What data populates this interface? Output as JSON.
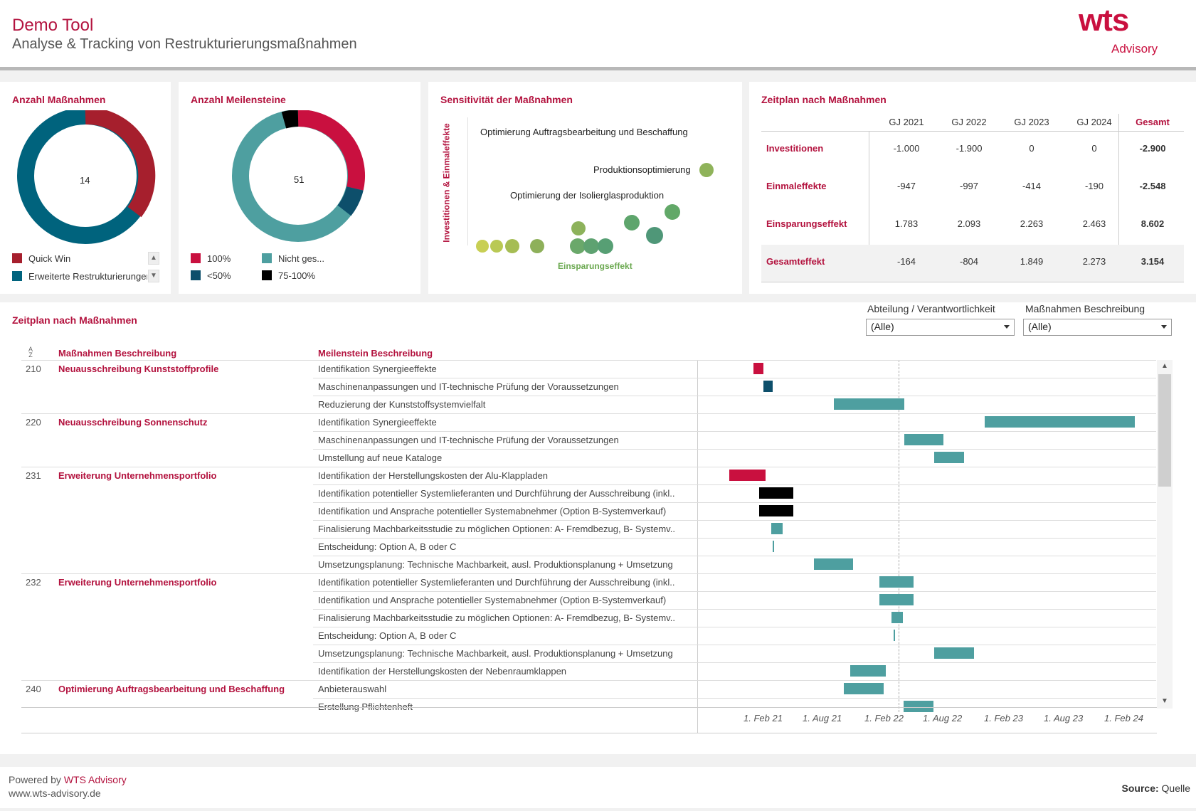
{
  "header": {
    "title": "Demo Tool",
    "subtitle": "Analyse & Tracking von Restrukturierungsmaßnahmen",
    "logo_main": "wts",
    "logo_sub": "Advisory"
  },
  "panel_measures": {
    "title": "Anzahl Maßnahmen",
    "total": "14",
    "legend": [
      {
        "label": "Quick Win",
        "color": "#a61f2d"
      },
      {
        "label": "Erweiterte Restrukturierungen",
        "color": "#00637d"
      }
    ]
  },
  "panel_milestones": {
    "title": "Anzahl Meilensteine",
    "total": "51",
    "legend": [
      {
        "label": "100%",
        "color": "#c9103f"
      },
      {
        "label": "Nicht ges...",
        "color": "#4e9fa0"
      },
      {
        "label": "<50%",
        "color": "#0d4f6b"
      },
      {
        "label": "75-100%",
        "color": "#000000"
      }
    ]
  },
  "panel_sensitivity": {
    "title": "Sensitivität der Maßnahmen",
    "y_label": "Investitionen & Einmaleffekte",
    "x_label": "Einsparungseffekt",
    "labels": [
      "Optimierung Auftragsbearbeitung und Beschaffung",
      "Produktionsoptimierung",
      "Optimierung der Isolierglasproduktion"
    ]
  },
  "panel_schedule": {
    "title": "Zeitplan nach Maßnahmen",
    "columns": [
      "GJ 2021",
      "GJ 2022",
      "GJ 2023",
      "GJ 2024",
      "Gesamt"
    ],
    "rows": [
      {
        "label": "Investitionen",
        "values": [
          "-1.000",
          "-1.900",
          "0",
          "0",
          "-2.900"
        ]
      },
      {
        "label": "Einmaleffekte",
        "values": [
          "-947",
          "-997",
          "-414",
          "-190",
          "-2.548"
        ]
      },
      {
        "label": "Einsparungseffekt",
        "values": [
          "1.783",
          "2.093",
          "2.263",
          "2.463",
          "8.602"
        ]
      },
      {
        "label": "Gesamteffekt",
        "values": [
          "-164",
          "-804",
          "1.849",
          "2.273",
          "3.154"
        ]
      }
    ]
  },
  "gantt": {
    "title": "Zeitplan nach Maßnahmen",
    "filter1_label": "Abteilung / Verantwortlichkeit",
    "filter1_value": "(Alle)",
    "filter2_label": "Maßnahmen Beschreibung",
    "filter2_value": "(Alle)",
    "col_measure": "Maßnahmen Beschreibung",
    "col_milestone": "Meilenstein Beschreibung",
    "axis_labels": [
      "1. Feb 21",
      "1. Aug 21",
      "1. Feb 22",
      "1. Aug 22",
      "1. Feb 23",
      "1. Aug 23",
      "1. Feb 24"
    ],
    "rows": [
      {
        "id": "210",
        "measure": "Neuausschreibung Kunststoffprofile",
        "milestone": "Identifikation Synergieeffekte"
      },
      {
        "id": "",
        "measure": "",
        "milestone": "Maschinenanpassungen und IT-technische Prüfung der Voraussetzungen"
      },
      {
        "id": "",
        "measure": "",
        "milestone": "Reduzierung der Kunststoffsystemvielfalt"
      },
      {
        "id": "220",
        "measure": "Neuausschreibung Sonnenschutz",
        "milestone": "Identifikation Synergieeffekte"
      },
      {
        "id": "",
        "measure": "",
        "milestone": "Maschinenanpassungen und IT-technische Prüfung der Voraussetzungen"
      },
      {
        "id": "",
        "measure": "",
        "milestone": "Umstellung auf neue Kataloge"
      },
      {
        "id": "231",
        "measure": "Erweiterung Unternehmensportfolio",
        "milestone": "Identifikation der Herstellungskosten der Alu-Klappladen"
      },
      {
        "id": "",
        "measure": "",
        "milestone": "Identifikation potentieller Systemlieferanten und Durchführung der Ausschreibung (inkl.."
      },
      {
        "id": "",
        "measure": "",
        "milestone": "Identifikation und Ansprache potentieller Systemabnehmer (Option B-Systemverkauf)"
      },
      {
        "id": "",
        "measure": "",
        "milestone": "Finalisierung Machbarkeitsstudie zu möglichen Optionen: A- Fremdbezug, B- Systemv.."
      },
      {
        "id": "",
        "measure": "",
        "milestone": "Entscheidung: Option A, B oder C"
      },
      {
        "id": "",
        "measure": "",
        "milestone": "Umsetzungsplanung: Technische Machbarkeit, ausl. Produktionsplanung + Umsetzung"
      },
      {
        "id": "232",
        "measure": "Erweiterung Unternehmensportfolio",
        "milestone": "Identifikation potentieller Systemlieferanten und Durchführung der Ausschreibung (inkl.."
      },
      {
        "id": "",
        "measure": "",
        "milestone": "Identifikation und Ansprache potentieller Systemabnehmer (Option B-Systemverkauf)"
      },
      {
        "id": "",
        "measure": "",
        "milestone": "Finalisierung Machbarkeitsstudie zu möglichen Optionen: A- Fremdbezug, B- Systemv.."
      },
      {
        "id": "",
        "measure": "",
        "milestone": "Entscheidung: Option A, B oder C"
      },
      {
        "id": "",
        "measure": "",
        "milestone": "Umsetzungsplanung: Technische Machbarkeit, ausl. Produktionsplanung + Umsetzung"
      },
      {
        "id": "",
        "measure": "",
        "milestone": "Identifikation der Herstellungskosten der Nebenraumklappen"
      },
      {
        "id": "240",
        "measure": "Optimierung Auftragsbearbeitung und Beschaffung",
        "milestone": "Anbieterauswahl"
      },
      {
        "id": "",
        "measure": "",
        "milestone": "Erstellung Pflichtenheft"
      }
    ]
  },
  "footer": {
    "powered_prefix": "Powered by ",
    "powered_brand": "WTS Advisory",
    "url": "www.wts-advisory.de",
    "source_label": "Source:",
    "source_value": "Quelle"
  }
}
